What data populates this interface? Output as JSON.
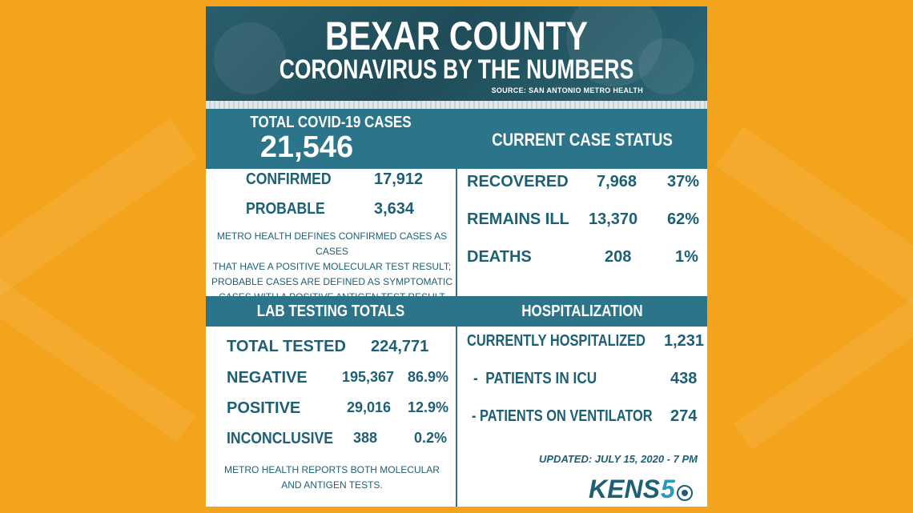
{
  "header": {
    "title": "BEXAR COUNTY",
    "subtitle": "CORONAVIRUS BY THE NUMBERS",
    "source": "SOURCE: SAN ANTONIO METRO HEALTH"
  },
  "total": {
    "label": "TOTAL COVID-19 CASES",
    "value": "21,546",
    "rows": [
      {
        "label": "CONFIRMED",
        "value": "17,912"
      },
      {
        "label": "PROBABLE",
        "value": "3,634"
      }
    ],
    "note": [
      "METRO HEALTH DEFINES CONFIRMED CASES AS CASES",
      "THAT HAVE A POSITIVE MOLECULAR TEST RESULT;",
      "PROBABLE CASES ARE DEFINED AS SYMPTOMATIC",
      "CASES WITH A POSITIVE ANTIGEN TEST RESULT"
    ]
  },
  "status": {
    "title": "CURRENT CASE STATUS",
    "rows": [
      {
        "label": "RECOVERED",
        "value": "7,968",
        "pct": "37%"
      },
      {
        "label": "REMAINS ILL",
        "value": "13,370",
        "pct": "62%"
      },
      {
        "label": "DEATHS",
        "value": "208",
        "pct": "1%"
      }
    ]
  },
  "lab": {
    "title": "LAB TESTING TOTALS",
    "total_label": "TOTAL TESTED",
    "total_value": "224,771",
    "rows": [
      {
        "label": "NEGATIVE",
        "value": "195,367",
        "pct": "86.9%"
      },
      {
        "label": "POSITIVE",
        "value": "29,016",
        "pct": "12.9%"
      },
      {
        "label": "INCONCLUSIVE",
        "value": "388",
        "pct": "0.2%"
      }
    ],
    "note": [
      "METRO HEALTH REPORTS BOTH MOLECULAR",
      "AND ANTIGEN TESTS."
    ]
  },
  "hosp": {
    "title": "HOSPITALIZATION",
    "rows": [
      {
        "label": "CURRENTLY HOSPITALIZED",
        "value": "1,231"
      },
      {
        "label": "-  PATIENTS IN ICU",
        "value": "438"
      },
      {
        "label": "- PATIENTS ON VENTILATOR",
        "value": "274"
      }
    ]
  },
  "updated": "UPDATED: JULY 15, 2020 - 7 PM",
  "logo": {
    "text": "KENS",
    "number": "5"
  },
  "colors": {
    "background": "#f4a31c",
    "teal": "#2b7489",
    "text": "#1d5f73"
  }
}
